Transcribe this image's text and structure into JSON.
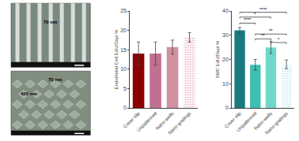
{
  "chart_data": [
    {
      "type": "image",
      "annotations": [
        "70 nm"
      ]
    },
    {
      "type": "image",
      "annotations": [
        "70 nm",
        "420 nm"
      ]
    },
    {
      "type": "bar",
      "categories": [
        "Cover slip",
        "Unpatterned",
        "Nano-wells",
        "Nano-gratings"
      ],
      "values": [
        14.0,
        14.0,
        15.7,
        18.2
      ],
      "errors": [
        3.0,
        3.0,
        1.8,
        1.2
      ],
      "colors": [
        "#8B0000",
        "#C07090",
        "#D090A0",
        "#E8B0C0"
      ],
      "ylabel": "Endothelial Cell EdU/Dapi %",
      "ylim": [
        0,
        25
      ],
      "yticks": [
        0,
        5,
        10,
        15,
        20,
        25
      ],
      "grid": false
    },
    {
      "type": "bar",
      "categories": [
        "Cover slip",
        "Unpatterned",
        "Nano-wells",
        "Nano-gratings"
      ],
      "values": [
        32.0,
        17.8,
        25.0,
        18.0
      ],
      "errors": [
        1.2,
        2.2,
        2.5,
        1.8
      ],
      "colors": [
        "#1A7A80",
        "#3DBFB0",
        "#70D8C8",
        "#B8EDE8"
      ],
      "ylabel": "SMC EdU/Dapi %",
      "ylim": [
        0,
        40
      ],
      "yticks": [
        0,
        10,
        20,
        30,
        40
      ],
      "grid": false,
      "brackets": [
        {
          "from": "Cover slip",
          "to": "Unpatterned",
          "y": 35.0,
          "label": "****"
        },
        {
          "from": "Cover slip",
          "to": "Nano-wells",
          "y": 37.5,
          "label": "*"
        },
        {
          "from": "Cover slip",
          "to": "Nano-gratings",
          "y": 39.5,
          "label": "****"
        },
        {
          "from": "Unpatterned",
          "to": "Nano-wells",
          "y": 28.5,
          "label": "**"
        },
        {
          "from": "Unpatterned",
          "to": "Nano-gratings",
          "y": 30.5,
          "label": "**"
        },
        {
          "from": "Nano-wells",
          "to": "Nano-gratings",
          "y": 27.0,
          "label": "*"
        }
      ]
    }
  ]
}
